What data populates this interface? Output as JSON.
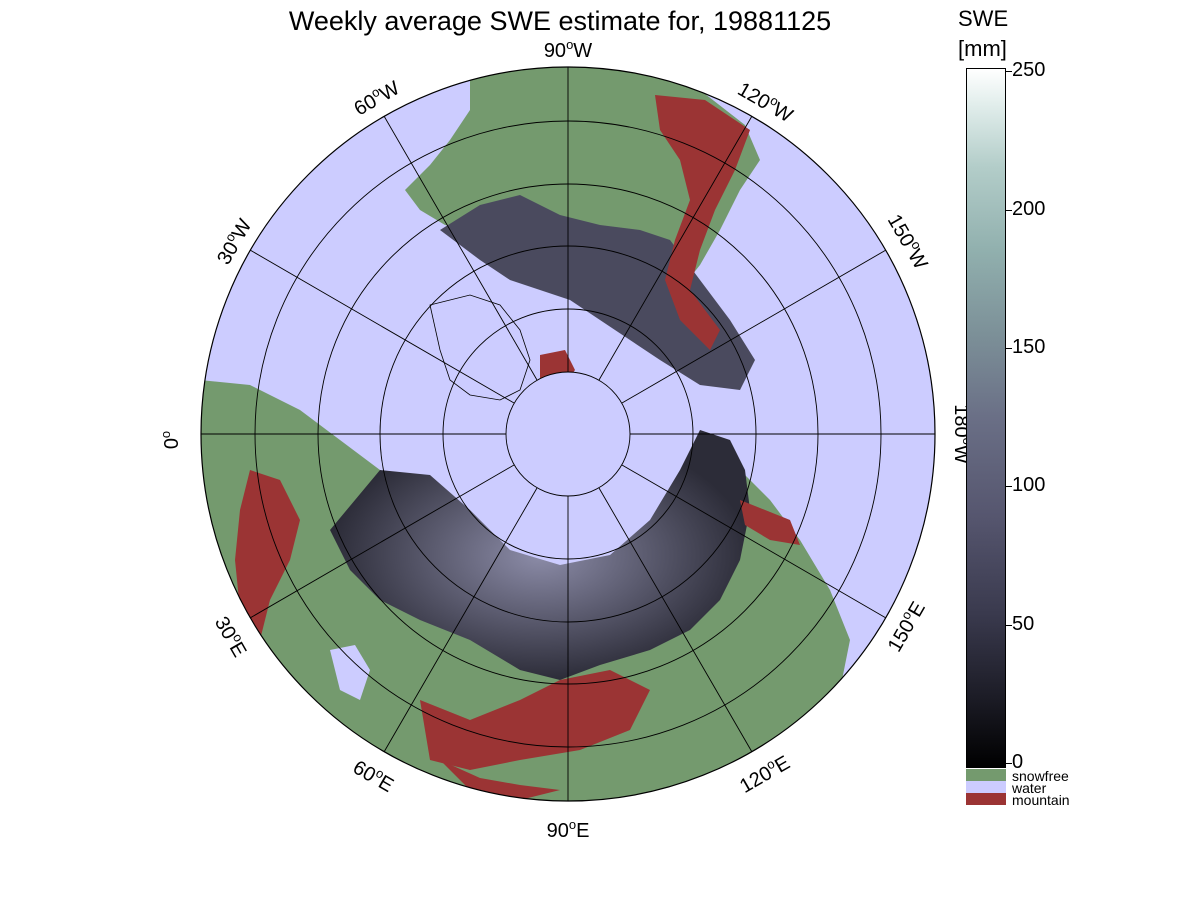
{
  "title": "Weekly average SWE estimate for, 19881125",
  "colorbar": {
    "title_line1": "SWE",
    "title_line2": "[mm]",
    "range": [
      0,
      250
    ],
    "ticks": [
      "0",
      "50",
      "100",
      "150",
      "200",
      "250"
    ]
  },
  "legend": [
    {
      "label": "snowfree",
      "color": "#749a6e"
    },
    {
      "label": "water",
      "color": "#ccccff"
    },
    {
      "label": "mountain",
      "color": "#9b3434"
    }
  ],
  "longitude_labels": [
    {
      "name": "90",
      "dir": "W"
    },
    {
      "name": "120",
      "dir": "W"
    },
    {
      "name": "150",
      "dir": "W"
    },
    {
      "name": "180",
      "dir": "W"
    },
    {
      "name": "150",
      "dir": "E"
    },
    {
      "name": "120",
      "dir": "E"
    },
    {
      "name": "90",
      "dir": "E"
    },
    {
      "name": "60",
      "dir": "E"
    },
    {
      "name": "30",
      "dir": "E"
    },
    {
      "name": "0",
      "dir": ""
    },
    {
      "name": "30",
      "dir": "W"
    },
    {
      "name": "60",
      "dir": "W"
    }
  ],
  "colors": {
    "water": "#ccccff",
    "snowfree": "#749a6e",
    "mountain": "#9b3434",
    "snow_low": "#2a2a36",
    "snow_high": "#8a8aa6"
  }
}
